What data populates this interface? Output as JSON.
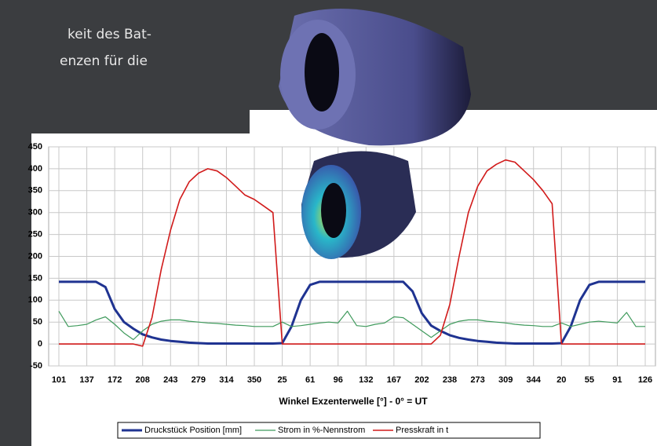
{
  "page": {
    "text_lines": [
      "keit des Bat-",
      "enzen für die"
    ]
  },
  "chart_data": {
    "type": "line",
    "x_label": "Winkel Exzenterwelle [°] - 0° = UT",
    "categories": [
      "101",
      null,
      null,
      "137",
      null,
      null,
      "172",
      null,
      null,
      "208",
      null,
      null,
      "243",
      null,
      null,
      "279",
      null,
      null,
      "314",
      null,
      null,
      "350",
      null,
      null,
      "25",
      null,
      null,
      "61",
      null,
      null,
      "96",
      null,
      null,
      "132",
      null,
      null,
      "167",
      null,
      null,
      "202",
      null,
      null,
      "238",
      null,
      null,
      "273",
      null,
      null,
      "309",
      null,
      null,
      "344",
      null,
      null,
      "20",
      null,
      null,
      "55",
      null,
      null,
      "91",
      null,
      null,
      "126"
    ],
    "series": [
      {
        "name": "Druckstück Position [mm]",
        "color": "#1f3391",
        "width": 3,
        "values": [
          142,
          142,
          142,
          142,
          142,
          130,
          80,
          50,
          35,
          22,
          15,
          10,
          7,
          5,
          3,
          2,
          1,
          1,
          1,
          1,
          1,
          1,
          1,
          1,
          2,
          40,
          100,
          135,
          142,
          142,
          142,
          142,
          142,
          142,
          142,
          142,
          142,
          142,
          120,
          70,
          42,
          30,
          20,
          14,
          10,
          7,
          5,
          3,
          2,
          1,
          1,
          1,
          1,
          1,
          2,
          40,
          100,
          135,
          142,
          142,
          142,
          142,
          142,
          142
        ]
      },
      {
        "name": "Strom in %-Nennstrom",
        "color": "#3f9a5c",
        "width": 1.2,
        "values": [
          75,
          40,
          42,
          45,
          55,
          62,
          45,
          25,
          10,
          30,
          45,
          52,
          55,
          55,
          52,
          50,
          48,
          47,
          45,
          43,
          42,
          40,
          40,
          40,
          50,
          40,
          42,
          45,
          48,
          50,
          48,
          75,
          42,
          40,
          45,
          48,
          62,
          60,
          45,
          30,
          15,
          30,
          45,
          52,
          55,
          55,
          52,
          50,
          48,
          45,
          43,
          42,
          40,
          40,
          48,
          40,
          45,
          50,
          52,
          50,
          48,
          72,
          40,
          40
        ]
      },
      {
        "name": "Presskraft in  t",
        "color": "#d11a1a",
        "width": 1.6,
        "values": [
          0,
          0,
          0,
          0,
          0,
          0,
          0,
          0,
          0,
          -5,
          60,
          170,
          260,
          330,
          370,
          390,
          400,
          395,
          380,
          360,
          340,
          330,
          315,
          300,
          0,
          0,
          0,
          0,
          0,
          0,
          0,
          0,
          0,
          0,
          0,
          0,
          0,
          0,
          0,
          0,
          0,
          20,
          90,
          200,
          300,
          360,
          395,
          410,
          420,
          415,
          395,
          375,
          350,
          320,
          0,
          0,
          0,
          0,
          0,
          0,
          0,
          0,
          0,
          0
        ]
      }
    ],
    "ylim": [
      -50,
      450
    ],
    "yticks": [
      -50,
      0,
      50,
      100,
      150,
      200,
      250,
      300,
      350,
      400,
      450
    ],
    "grid": true
  }
}
